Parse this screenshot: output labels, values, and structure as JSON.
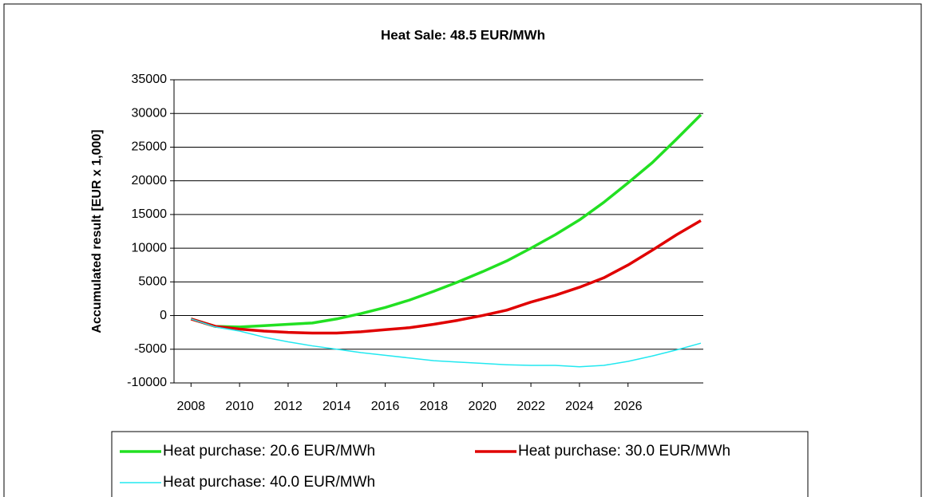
{
  "chart_data": {
    "type": "line",
    "title": "Heat Sale: 48.5 EUR/MWh",
    "y_label": "Accumulated result [EUR x 1,000]",
    "x": [
      2008,
      2009,
      2010,
      2011,
      2012,
      2013,
      2014,
      2015,
      2016,
      2017,
      2018,
      2019,
      2020,
      2021,
      2022,
      2023,
      2024,
      2025,
      2026,
      2027,
      2028,
      2029
    ],
    "xlim": [
      2007.3,
      2029.1
    ],
    "xticks": [
      2008,
      2010,
      2012,
      2014,
      2016,
      2018,
      2020,
      2022,
      2024,
      2026
    ],
    "ylim": [
      -10000,
      35000
    ],
    "yticks": [
      -10000,
      -5000,
      0,
      5000,
      10000,
      15000,
      20000,
      25000,
      30000,
      35000
    ],
    "grid": true,
    "series": [
      {
        "name": "Heat purchase: 20.6 EUR/MWh",
        "color": "#22e022",
        "width": 3.5,
        "values": [
          -500,
          -1600,
          -1700,
          -1500,
          -1300,
          -1100,
          -500,
          300,
          1200,
          2300,
          3600,
          5000,
          6500,
          8100,
          10000,
          12000,
          14200,
          16800,
          19700,
          22700,
          26200,
          29800
        ]
      },
      {
        "name": "Heat purchase: 30.0 EUR/MWh",
        "color": "#e00000",
        "width": 3.5,
        "values": [
          -500,
          -1600,
          -2000,
          -2300,
          -2500,
          -2600,
          -2600,
          -2400,
          -2100,
          -1800,
          -1300,
          -700,
          0,
          800,
          2000,
          3000,
          4200,
          5600,
          7500,
          9700,
          12000,
          14100
        ]
      },
      {
        "name": "Heat purchase: 40.0 EUR/MWh",
        "color": "#22e8f0",
        "width": 1.5,
        "values": [
          -500,
          -1700,
          -2300,
          -3200,
          -3900,
          -4500,
          -5000,
          -5500,
          -5900,
          -6300,
          -6700,
          -6900,
          -7100,
          -7300,
          -7400,
          -7400,
          -7600,
          -7400,
          -6800,
          -6000,
          -5100,
          -4100
        ]
      }
    ]
  }
}
